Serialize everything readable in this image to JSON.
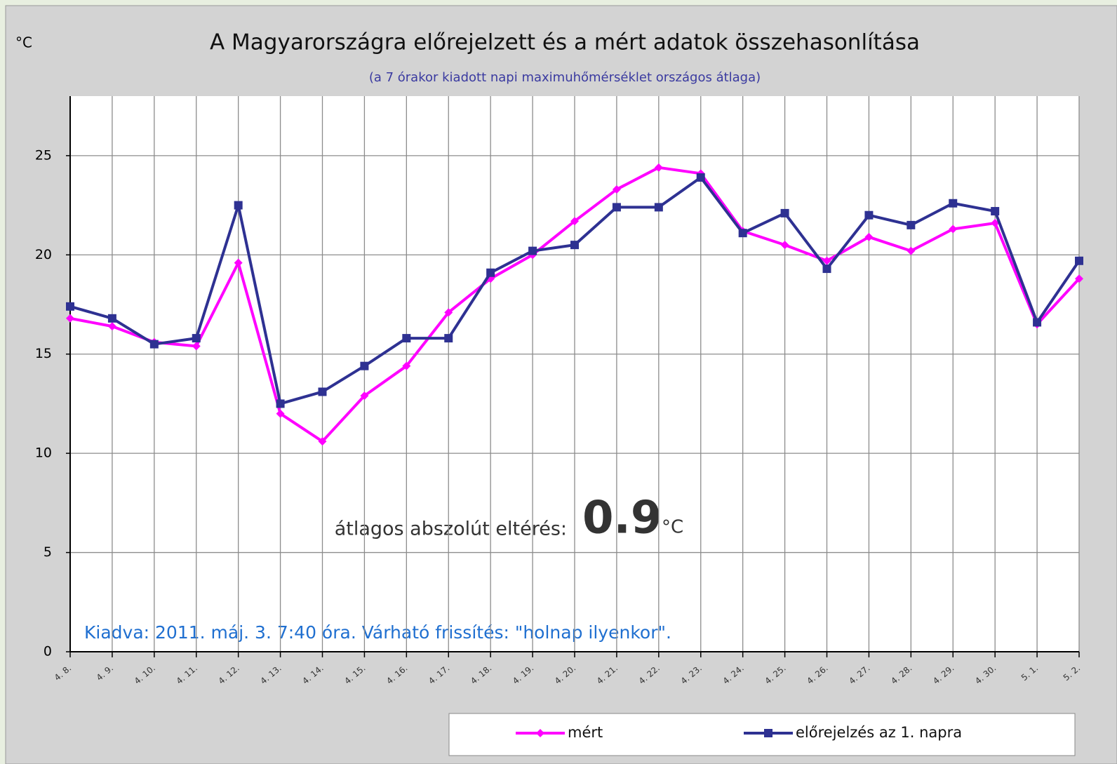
{
  "chart_data": {
    "type": "line",
    "title": "A Magyarországra előrejelzett és a mért adatok összehasonlítása",
    "subtitle": "(a 7 órakor kiadott napi maximuhőmérséklet országos átlaga)",
    "ylabel": "°C",
    "categories": [
      "4. 8.",
      "4. 9.",
      "4. 10.",
      "4. 11.",
      "4. 12.",
      "4. 13.",
      "4. 14.",
      "4. 15.",
      "4. 16.",
      "4. 17.",
      "4. 18.",
      "4. 19.",
      "4. 20.",
      "4. 21.",
      "4. 22.",
      "4. 23.",
      "4. 24.",
      "4. 25.",
      "4. 26.",
      "4. 27.",
      "4. 28.",
      "4. 29.",
      "4. 30.",
      "5. 1.",
      "5. 2."
    ],
    "series": [
      {
        "name": "mért",
        "color": "#ff00ff",
        "marker": "diamond",
        "values": [
          16.8,
          16.4,
          15.6,
          15.4,
          19.6,
          12.0,
          10.6,
          12.9,
          14.4,
          17.1,
          18.8,
          20.0,
          21.7,
          23.3,
          24.4,
          24.1,
          21.2,
          20.5,
          19.7,
          20.9,
          20.2,
          21.3,
          21.6,
          16.5,
          18.8
        ]
      },
      {
        "name": "előrejelzés az 1. napra",
        "color": "#2e3192",
        "marker": "square",
        "values": [
          17.4,
          16.8,
          15.5,
          15.8,
          22.5,
          12.5,
          13.1,
          14.4,
          15.8,
          15.8,
          19.1,
          20.2,
          20.5,
          22.4,
          22.4,
          23.9,
          21.1,
          22.1,
          19.3,
          22.0,
          21.5,
          22.6,
          22.2,
          16.6,
          19.7
        ]
      }
    ],
    "ylim": [
      0,
      28
    ],
    "yticks": [
      0,
      5,
      10,
      15,
      20,
      25
    ],
    "grid": true,
    "legend": "bottom-right",
    "annotations": {
      "deviation_label": "átlagos abszolút eltérés:",
      "deviation_value": 0.9,
      "deviation_unit": "°C",
      "issued": "Kiadva: 2011. máj. 3.  7:40 óra.  Várható frissítés: \"holnap ilyenkor\"."
    }
  }
}
